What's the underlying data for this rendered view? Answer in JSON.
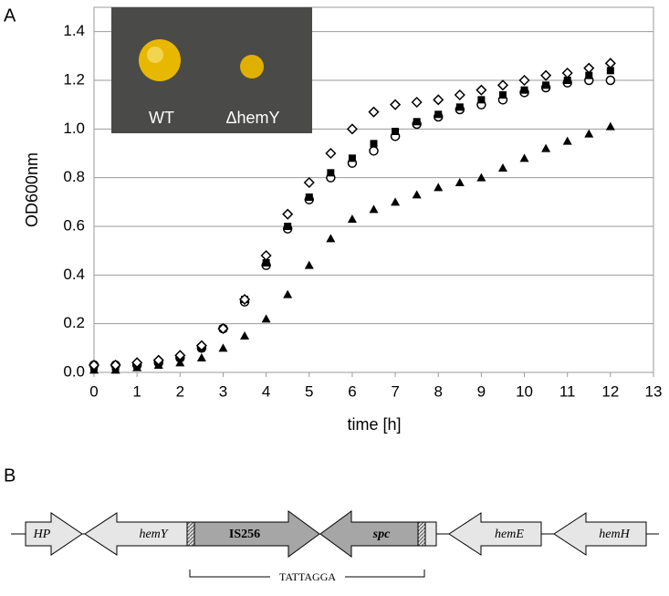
{
  "panel_labels": [
    "A",
    "B"
  ],
  "chart_data": {
    "type": "scatter",
    "xlabel": "time [h]",
    "ylabel": "OD600nm",
    "x": [
      0,
      0.5,
      1,
      1.5,
      2,
      2.5,
      3,
      3.5,
      4,
      4.5,
      5,
      5.5,
      6,
      6.5,
      7,
      7.5,
      8,
      8.5,
      9,
      9.5,
      10,
      10.5,
      11,
      11.5,
      12
    ],
    "series": [
      {
        "marker": "diamond-open",
        "color": "#000000",
        "values": [
          0.03,
          0.03,
          0.04,
          0.05,
          0.07,
          0.11,
          0.18,
          0.3,
          0.48,
          0.65,
          0.78,
          0.9,
          1.0,
          1.07,
          1.1,
          1.11,
          1.12,
          1.14,
          1.16,
          1.18,
          1.2,
          1.22,
          1.23,
          1.25,
          1.27
        ]
      },
      {
        "marker": "square-filled",
        "color": "#000000",
        "values": [
          0.02,
          0.02,
          0.03,
          0.04,
          0.06,
          0.1,
          0.18,
          0.3,
          0.45,
          0.6,
          0.72,
          0.82,
          0.88,
          0.94,
          0.99,
          1.03,
          1.06,
          1.09,
          1.12,
          1.14,
          1.16,
          1.18,
          1.2,
          1.22,
          1.24
        ]
      },
      {
        "marker": "circle-open",
        "color": "#000000",
        "values": [
          0.03,
          0.03,
          0.03,
          0.04,
          0.06,
          0.1,
          0.18,
          0.29,
          0.44,
          0.59,
          0.71,
          0.8,
          0.86,
          0.91,
          0.97,
          1.02,
          1.05,
          1.08,
          1.1,
          1.12,
          1.15,
          1.17,
          1.19,
          1.2,
          1.2
        ]
      },
      {
        "marker": "triangle-filled",
        "color": "#000000",
        "values": [
          0.01,
          0.01,
          0.02,
          0.03,
          0.04,
          0.06,
          0.1,
          0.15,
          0.22,
          0.32,
          0.44,
          0.55,
          0.63,
          0.67,
          0.7,
          0.73,
          0.76,
          0.78,
          0.8,
          0.84,
          0.88,
          0.92,
          0.95,
          0.98,
          1.01
        ]
      }
    ],
    "xlim": [
      0,
      13
    ],
    "xticks": [
      0,
      1,
      2,
      3,
      4,
      5,
      6,
      7,
      8,
      9,
      10,
      11,
      12,
      13
    ],
    "ylim": [
      0,
      1.5
    ],
    "yticks": [
      {
        "value": 0,
        "label": "0.0"
      },
      {
        "value": 0.2,
        "label": "0.2"
      },
      {
        "value": 0.4,
        "label": "0.4"
      },
      {
        "value": 0.6,
        "label": "0.6"
      },
      {
        "value": 0.8,
        "label": "0.8"
      },
      {
        "value": 1,
        "label": "1.0"
      },
      {
        "value": 1.2,
        "label": "1.2"
      },
      {
        "value": 1.4,
        "label": "1.4"
      }
    ],
    "grid": true
  },
  "inset": {
    "labels": [
      "WT",
      "ΔhemY"
    ]
  },
  "diagram": {
    "genes": [
      "HP",
      "hemY",
      "IS256",
      "spc",
      "hemE",
      "hemH"
    ],
    "junction": "TATTAGGA"
  }
}
